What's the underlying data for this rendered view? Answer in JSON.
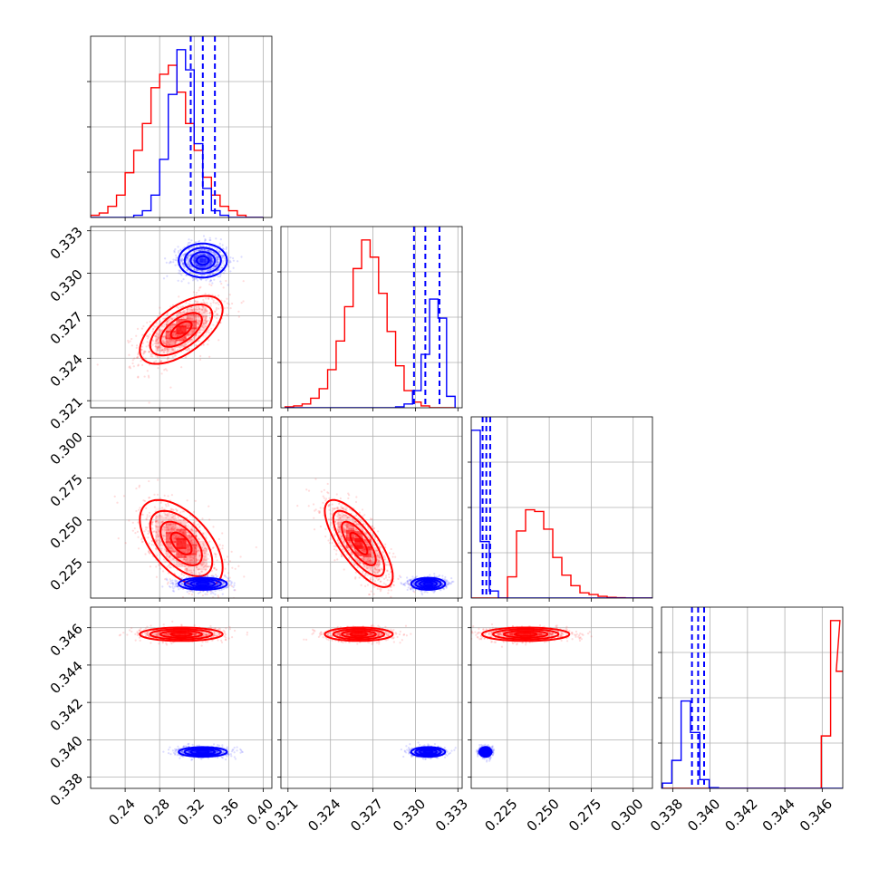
{
  "chart_data": {
    "type": "corner",
    "grid": true,
    "colors": {
      "red": "#ff0000",
      "blue": "#0000ff"
    },
    "params": [
      {
        "ticks": [
          0.24,
          0.28,
          0.32,
          0.36,
          0.4
        ],
        "tick_labels": [
          "0.24",
          "0.28",
          "0.32",
          "0.36",
          "0.40"
        ],
        "range": [
          0.2,
          0.41
        ]
      },
      {
        "ticks": [
          0.321,
          0.324,
          0.327,
          0.33,
          0.333
        ],
        "tick_labels": [
          "0.321",
          "0.324",
          "0.327",
          "0.330",
          "0.333"
        ],
        "range": [
          0.3205,
          0.3333
        ]
      },
      {
        "ticks": [
          0.225,
          0.25,
          0.275,
          0.3
        ],
        "tick_labels": [
          "0.225",
          "0.250",
          "0.275",
          "0.300"
        ],
        "range": [
          0.2035,
          0.3115
        ]
      },
      {
        "ticks": [
          0.338,
          0.34,
          0.342,
          0.344,
          0.346
        ],
        "tick_labels": [
          "0.338",
          "0.340",
          "0.342",
          "0.344",
          "0.346"
        ],
        "range": [
          0.3374,
          0.3471
        ]
      }
    ],
    "series": [
      {
        "name": "",
        "color": "#ff0000",
        "hist_x": [
          [
            0.205,
            0.215,
            0.225,
            0.235,
            0.245,
            0.255,
            0.265,
            0.275,
            0.285,
            0.295,
            0.305,
            0.315,
            0.325,
            0.335,
            0.345,
            0.355,
            0.365,
            0.375,
            0.385,
            0.395
          ],
          [
            0.3211,
            0.3217,
            0.3223,
            0.3229,
            0.3235,
            0.3241,
            0.3247,
            0.3253,
            0.3259,
            0.3265,
            0.3271,
            0.3277,
            0.3283,
            0.3289,
            0.3295,
            0.3301,
            0.3307,
            0.3313,
            0.3319,
            0.3325
          ],
          [
            0.2062,
            0.2116,
            0.217,
            0.2224,
            0.2278,
            0.2332,
            0.2386,
            0.244,
            0.2494,
            0.2548,
            0.2602,
            0.2656,
            0.271,
            0.2764,
            0.2818,
            0.2872,
            0.2926,
            0.298,
            0.3034,
            0.3088
          ],
          [
            0.3377,
            0.3382,
            0.3387,
            0.3392,
            0.3397,
            0.3402,
            0.3407,
            0.3412,
            0.3417,
            0.3422,
            0.3427,
            0.3432,
            0.3437,
            0.3442,
            0.3447,
            0.3452,
            0.3457,
            0.3462,
            0.3467,
            0.347
          ]
        ],
        "hist_y": [
          [
            1,
            2,
            5,
            10,
            20,
            30,
            42,
            58,
            64,
            68,
            56,
            42,
            30,
            18,
            10,
            5,
            3,
            1,
            0,
            0
          ],
          [
            0.5,
            1,
            2,
            5,
            10,
            20,
            35,
            53,
            73,
            88,
            79,
            60,
            40,
            22,
            9,
            3,
            1,
            0,
            0,
            0
          ],
          [
            0,
            0,
            0,
            0,
            12,
            38,
            50,
            49,
            39,
            23,
            13,
            7,
            3,
            2,
            1,
            0.4,
            0.2,
            0,
            0,
            0
          ],
          [
            0,
            0,
            0,
            0,
            0,
            0,
            0,
            0,
            0,
            0,
            0,
            0,
            0,
            0,
            0,
            0,
            0,
            30,
            96,
            67
          ]
        ],
        "centers": [
          0.305,
          0.326,
          0.236,
          0.34565
        ],
        "sigmas": [
          0.024,
          0.0012,
          0.013,
          0.00018
        ]
      },
      {
        "name": "",
        "color": "#0000ff",
        "hist_x": [
          [
            0.205,
            0.215,
            0.225,
            0.235,
            0.245,
            0.255,
            0.265,
            0.275,
            0.285,
            0.295,
            0.305,
            0.315,
            0.325,
            0.335,
            0.345,
            0.355,
            0.365,
            0.375,
            0.385,
            0.395
          ],
          [
            0.3211,
            0.3217,
            0.3223,
            0.3229,
            0.3235,
            0.3241,
            0.3247,
            0.3253,
            0.3259,
            0.3265,
            0.3271,
            0.3277,
            0.3283,
            0.3289,
            0.3295,
            0.3301,
            0.3307,
            0.3313,
            0.3319,
            0.3325
          ],
          [
            0.2062,
            0.2116,
            0.217,
            0.2224,
            0.2278,
            0.2332,
            0.2386,
            0.244,
            0.2494,
            0.2548,
            0.2602,
            0.2656,
            0.271,
            0.2764,
            0.2818,
            0.2872,
            0.2926,
            0.298,
            0.3034,
            0.3088
          ],
          [
            0.3377,
            0.3382,
            0.3387,
            0.3392,
            0.3397,
            0.3402,
            0.3407,
            0.3412,
            0.3417,
            0.3422,
            0.3427,
            0.3432,
            0.3437,
            0.3442,
            0.3447,
            0.3452,
            0.3457,
            0.3462,
            0.3467,
            0.347
          ]
        ],
        "hist_y": [
          [
            0,
            0,
            0,
            0,
            0,
            1,
            3,
            10,
            26,
            55,
            75,
            66,
            33,
            13,
            3,
            1,
            0,
            0,
            0,
            0
          ],
          [
            0,
            0,
            0,
            0,
            0,
            0,
            0,
            0,
            0,
            0,
            0,
            0,
            0,
            0.5,
            2,
            9,
            28,
            57,
            47,
            6
          ],
          [
            95,
            32,
            4,
            0,
            0,
            0,
            0,
            0,
            0,
            0,
            0,
            0,
            0,
            0,
            0,
            0,
            0,
            0,
            0,
            0
          ],
          [
            3,
            16,
            50,
            32,
            5,
            0.4,
            0,
            0,
            0,
            0,
            0,
            0,
            0,
            0,
            0,
            0,
            0,
            0,
            0,
            0
          ]
        ],
        "quantiles": [
          [
            0.316,
            0.33,
            0.344
          ],
          [
            0.3299,
            0.3307,
            0.3317
          ],
          [
            0.2103,
            0.2125,
            0.2148
          ],
          [
            0.33903,
            0.33936,
            0.33968
          ]
        ],
        "centers": [
          0.33,
          0.3309,
          0.212,
          0.33935
        ],
        "sigmas": [
          0.014,
          0.0006,
          0.0018,
          0.00013
        ]
      }
    ]
  }
}
